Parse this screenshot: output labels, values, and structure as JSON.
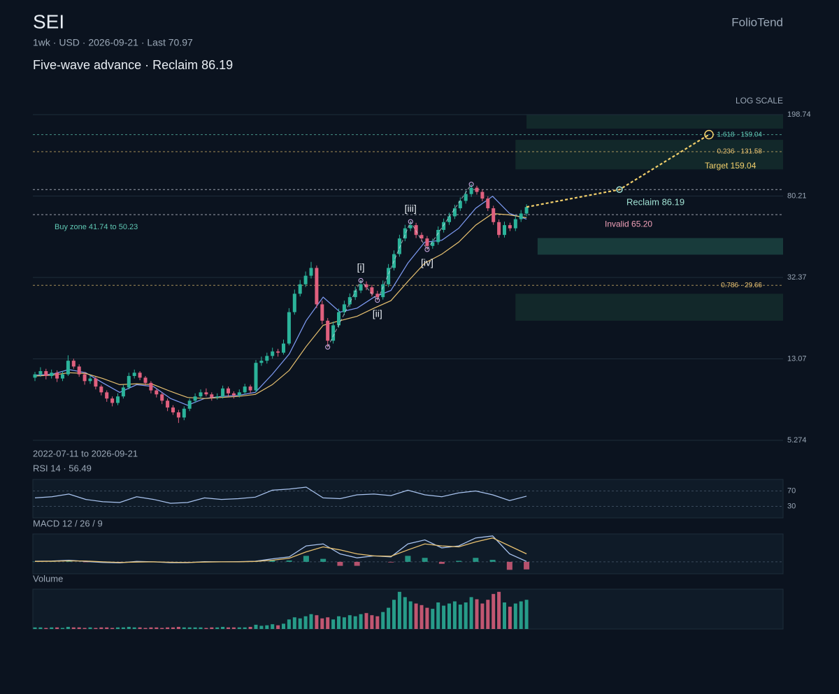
{
  "header": {
    "symbol": "SEI",
    "meta": "1wk · USD · 2026-09-21 · Last 70.97",
    "headline": "Five-wave advance · Reclaim 86.19",
    "brand": "FolioTend"
  },
  "chart_data": {
    "type": "candlestick",
    "scale_label": "LOG SCALE",
    "log_scale": true,
    "grid": true,
    "ylim": [
      5.274,
      198.74
    ],
    "yticks": [
      198.74,
      80.21,
      32.37,
      13.07,
      5.274
    ],
    "up_color": "#2bb39a",
    "down_color": "#e0607e",
    "candles": [
      [
        10.6,
        11.3,
        10.2,
        11.0
      ],
      [
        11.0,
        11.9,
        10.7,
        11.4
      ],
      [
        11.4,
        11.7,
        10.4,
        10.8
      ],
      [
        10.8,
        11.6,
        10.5,
        11.2
      ],
      [
        11.2,
        11.5,
        10.1,
        10.5
      ],
      [
        10.5,
        11.4,
        10.2,
        11.0
      ],
      [
        11.0,
        13.6,
        10.8,
        12.8
      ],
      [
        12.8,
        13.1,
        11.7,
        12.0
      ],
      [
        12.0,
        12.3,
        10.7,
        11.0
      ],
      [
        11.0,
        11.3,
        9.8,
        10.2
      ],
      [
        10.2,
        10.9,
        9.9,
        10.5
      ],
      [
        10.5,
        10.7,
        9.3,
        9.6
      ],
      [
        9.6,
        9.8,
        8.7,
        9.0
      ],
      [
        9.0,
        9.2,
        8.1,
        8.4
      ],
      [
        8.4,
        8.6,
        7.7,
        8.0
      ],
      [
        8.0,
        8.9,
        7.8,
        8.6
      ],
      [
        8.6,
        9.8,
        8.4,
        9.5
      ],
      [
        9.5,
        11.2,
        9.3,
        10.8
      ],
      [
        10.8,
        11.6,
        10.5,
        11.2
      ],
      [
        11.2,
        11.4,
        10.3,
        10.6
      ],
      [
        10.6,
        10.8,
        9.7,
        10.0
      ],
      [
        10.0,
        10.2,
        8.9,
        9.2
      ],
      [
        9.2,
        9.4,
        8.5,
        8.8
      ],
      [
        8.8,
        9.0,
        7.9,
        8.2
      ],
      [
        8.2,
        8.4,
        7.3,
        7.6
      ],
      [
        7.6,
        7.8,
        7.0,
        7.2
      ],
      [
        7.2,
        7.4,
        6.4,
        6.8
      ],
      [
        6.8,
        7.7,
        6.6,
        7.5
      ],
      [
        7.5,
        8.4,
        7.3,
        8.2
      ],
      [
        8.2,
        8.9,
        8.0,
        8.6
      ],
      [
        8.6,
        9.3,
        8.4,
        9.0
      ],
      [
        9.0,
        9.4,
        8.6,
        8.8
      ],
      [
        8.8,
        9.0,
        8.2,
        8.5
      ],
      [
        8.5,
        8.9,
        8.3,
        8.6
      ],
      [
        8.6,
        9.7,
        8.4,
        9.4
      ],
      [
        9.4,
        9.6,
        8.6,
        8.9
      ],
      [
        8.9,
        9.1,
        8.4,
        8.7
      ],
      [
        8.7,
        9.3,
        8.5,
        9.0
      ],
      [
        9.0,
        9.9,
        8.8,
        9.6
      ],
      [
        9.6,
        9.8,
        8.9,
        9.2
      ],
      [
        9.2,
        12.9,
        9.0,
        12.5
      ],
      [
        12.5,
        13.4,
        12.1,
        12.8
      ],
      [
        12.8,
        14.0,
        12.4,
        13.5
      ],
      [
        13.5,
        14.8,
        13.1,
        14.2
      ],
      [
        14.2,
        14.6,
        13.4,
        14.0
      ],
      [
        14.0,
        16.2,
        13.7,
        15.5
      ],
      [
        15.5,
        23.0,
        15.2,
        22.0
      ],
      [
        22.0,
        28.3,
        21.4,
        27.0
      ],
      [
        27.0,
        31.5,
        26.2,
        30.0
      ],
      [
        30.0,
        34.6,
        29.1,
        33.0
      ],
      [
        33.0,
        38.5,
        32.0,
        36.0
      ],
      [
        36.0,
        37.0,
        23.0,
        24.0
      ],
      [
        24.0,
        25.0,
        19.2,
        20.0
      ],
      [
        20.0,
        20.6,
        14.9,
        16.0
      ],
      [
        16.0,
        19.8,
        15.5,
        19.0
      ],
      [
        19.0,
        22.9,
        18.5,
        22.0
      ],
      [
        22.0,
        25.0,
        21.3,
        24.0
      ],
      [
        24.0,
        27.1,
        23.3,
        26.0
      ],
      [
        26.0,
        29.2,
        25.2,
        28.0
      ],
      [
        28.0,
        31.3,
        27.2,
        30.0
      ],
      [
        30.0,
        31.0,
        28.1,
        29.0
      ],
      [
        29.0,
        29.8,
        26.2,
        27.0
      ],
      [
        27.0,
        27.9,
        25.1,
        26.0
      ],
      [
        26.0,
        31.3,
        25.3,
        30.0
      ],
      [
        30.0,
        37.6,
        29.1,
        36.0
      ],
      [
        36.0,
        43.8,
        35.0,
        42.0
      ],
      [
        42.0,
        52.1,
        40.8,
        50.0
      ],
      [
        50.0,
        58.2,
        48.5,
        56.0
      ],
      [
        56.0,
        60.3,
        54.3,
        58.0
      ],
      [
        58.0,
        59.5,
        50.2,
        52.0
      ],
      [
        52.0,
        53.5,
        48.3,
        50.0
      ],
      [
        50.0,
        51.4,
        44.2,
        46.0
      ],
      [
        46.0,
        49.9,
        44.6,
        48.0
      ],
      [
        48.0,
        57.2,
        46.6,
        55.0
      ],
      [
        55.0,
        62.4,
        53.4,
        60.0
      ],
      [
        60.0,
        66.6,
        58.2,
        64.0
      ],
      [
        64.0,
        72.8,
        62.1,
        70.0
      ],
      [
        70.0,
        79.0,
        68.0,
        76.0
      ],
      [
        76.0,
        85.3,
        73.7,
        82.0
      ],
      [
        82.0,
        91.5,
        79.5,
        88.0
      ],
      [
        88.0,
        90.0,
        81.5,
        84.0
      ],
      [
        84.0,
        86.1,
        75.7,
        78.0
      ],
      [
        78.0,
        80.0,
        67.9,
        70.0
      ],
      [
        70.0,
        72.0,
        58.2,
        60.0
      ],
      [
        60.0,
        61.8,
        50.4,
        52.0
      ],
      [
        52.0,
        60.3,
        50.5,
        58.0
      ],
      [
        58.0,
        59.6,
        54.3,
        56.0
      ],
      [
        56.0,
        64.5,
        54.3,
        62.0
      ],
      [
        62.0,
        68.6,
        60.1,
        66.0
      ],
      [
        66.0,
        73.2,
        64.0,
        70.97
      ]
    ],
    "ma_fast": {
      "color": "#7f9cf5",
      "values": [
        10.9,
        11.0,
        11.6,
        11.2,
        10.0,
        9.0,
        9.8,
        9.6,
        8.4,
        7.8,
        8.4,
        8.6,
        8.7,
        9.0,
        11.0,
        13.8,
        20,
        26,
        22,
        23,
        26,
        28,
        38,
        48,
        49,
        56,
        70,
        80,
        66,
        62
      ]
    },
    "ma_slow": {
      "color": "#e8c170",
      "values": [
        10.8,
        10.9,
        11.2,
        11.1,
        10.5,
        9.8,
        9.9,
        9.8,
        9.1,
        8.5,
        8.4,
        8.5,
        8.6,
        8.8,
        9.8,
        11.5,
        15,
        19,
        20,
        21,
        23,
        25,
        31,
        38,
        42,
        48,
        58,
        66,
        65,
        63
      ]
    },
    "zones": [
      {
        "lo": 170,
        "hi": 198.74,
        "from": 89
      },
      {
        "lo": 108,
        "hi": 150,
        "from": 87
      },
      {
        "lo": 41.74,
        "hi": 50.23,
        "from": 91
      },
      {
        "lo": 20,
        "hi": 27,
        "from": 87
      }
    ],
    "levels": [
      {
        "value": 159.04,
        "label": "1.618 · 159.04",
        "color": "#5fc8b4"
      },
      {
        "value": 131.58,
        "label": "0.236 · 131.58",
        "color": "#e8c170"
      },
      {
        "value": 86.19,
        "color": "#d8dee9"
      },
      {
        "value": 65.2,
        "color": "#d8dee9"
      },
      {
        "value": 29.66,
        "label": "0.786 · 29.66",
        "color": "#e8c170"
      }
    ],
    "waves": [
      {
        "index": 53,
        "price": 14.9
      },
      {
        "index": 59,
        "price": 31.3,
        "label": "[i]"
      },
      {
        "index": 62,
        "price": 25.1,
        "label": "[ii]"
      },
      {
        "index": 68,
        "price": 60.3,
        "label": "[iii]"
      },
      {
        "index": 71,
        "price": 44.2,
        "label": "[iv]"
      },
      {
        "index": 79,
        "price": 91.5
      }
    ],
    "projection": [
      70.97,
      86.19,
      159.04
    ],
    "notes": {
      "target": "Target 159.04",
      "reclaim": "Reclaim 86.19",
      "invalid": "Invalid 65.20",
      "buy_zone": "Buy zone 41.74 to 50.23"
    },
    "range_label": "2022-07-11 to 2026-09-21",
    "rsi": {
      "title": "RSI 14 · 56.49",
      "color": "#a9c4f0",
      "ylim": [
        0,
        100
      ],
      "yticks": [
        70,
        30
      ],
      "values": [
        52,
        55,
        62,
        48,
        42,
        40,
        55,
        48,
        38,
        40,
        52,
        48,
        50,
        54,
        72,
        75,
        80,
        52,
        50,
        60,
        62,
        58,
        72,
        60,
        55,
        65,
        70,
        60,
        45,
        56.49
      ]
    },
    "macd": {
      "title": "MACD 12 / 26 / 9",
      "ylim": [
        -6,
        14
      ],
      "line": {
        "color": "#a9c4f0",
        "values": [
          0.3,
          0.4,
          0.8,
          0.2,
          -0.3,
          -0.5,
          0.2,
          0.0,
          -0.4,
          -0.4,
          0.1,
          0.0,
          0.1,
          0.3,
          1.5,
          2.5,
          8,
          9,
          4,
          2,
          3,
          2.5,
          9,
          11,
          7,
          8,
          12,
          13,
          4,
          0.2
        ]
      },
      "signal": {
        "color": "#e8c170",
        "values": [
          0.2,
          0.3,
          0.5,
          0.4,
          0.0,
          -0.3,
          -0.1,
          0.0,
          -0.2,
          -0.3,
          -0.1,
          0.0,
          0.0,
          0.2,
          0.8,
          1.8,
          5,
          7.5,
          6,
          4,
          3,
          2.8,
          6,
          9,
          8,
          7.5,
          10,
          12,
          8,
          4
        ]
      },
      "hist": [
        0.1,
        0.1,
        0.3,
        -0.2,
        -0.3,
        -0.2,
        0.3,
        0.0,
        -0.2,
        -0.1,
        0.2,
        0.0,
        0.1,
        0.1,
        0.7,
        0.7,
        3,
        1.5,
        -2,
        -2,
        0,
        -0.3,
        3,
        2,
        -1,
        0.5,
        2,
        1,
        -4,
        -3.8
      ]
    },
    "volume": {
      "title": "Volume",
      "ylim": [
        0,
        75
      ],
      "values": [
        3,
        3,
        2,
        3,
        3,
        2,
        4,
        3,
        3,
        2,
        3,
        2,
        3,
        3,
        2,
        3,
        3,
        4,
        3,
        3,
        2,
        3,
        3,
        2,
        3,
        3,
        4,
        3,
        3,
        3,
        3,
        2,
        3,
        3,
        4,
        3,
        3,
        3,
        3,
        4,
        8,
        6,
        7,
        9,
        7,
        10,
        18,
        22,
        20,
        24,
        28,
        26,
        20,
        22,
        18,
        24,
        22,
        26,
        24,
        28,
        30,
        26,
        24,
        32,
        40,
        55,
        70,
        60,
        52,
        48,
        45,
        40,
        38,
        50,
        44,
        48,
        52,
        46,
        50,
        60,
        56,
        48,
        55,
        66,
        70,
        50,
        42,
        48,
        52,
        55
      ]
    }
  }
}
